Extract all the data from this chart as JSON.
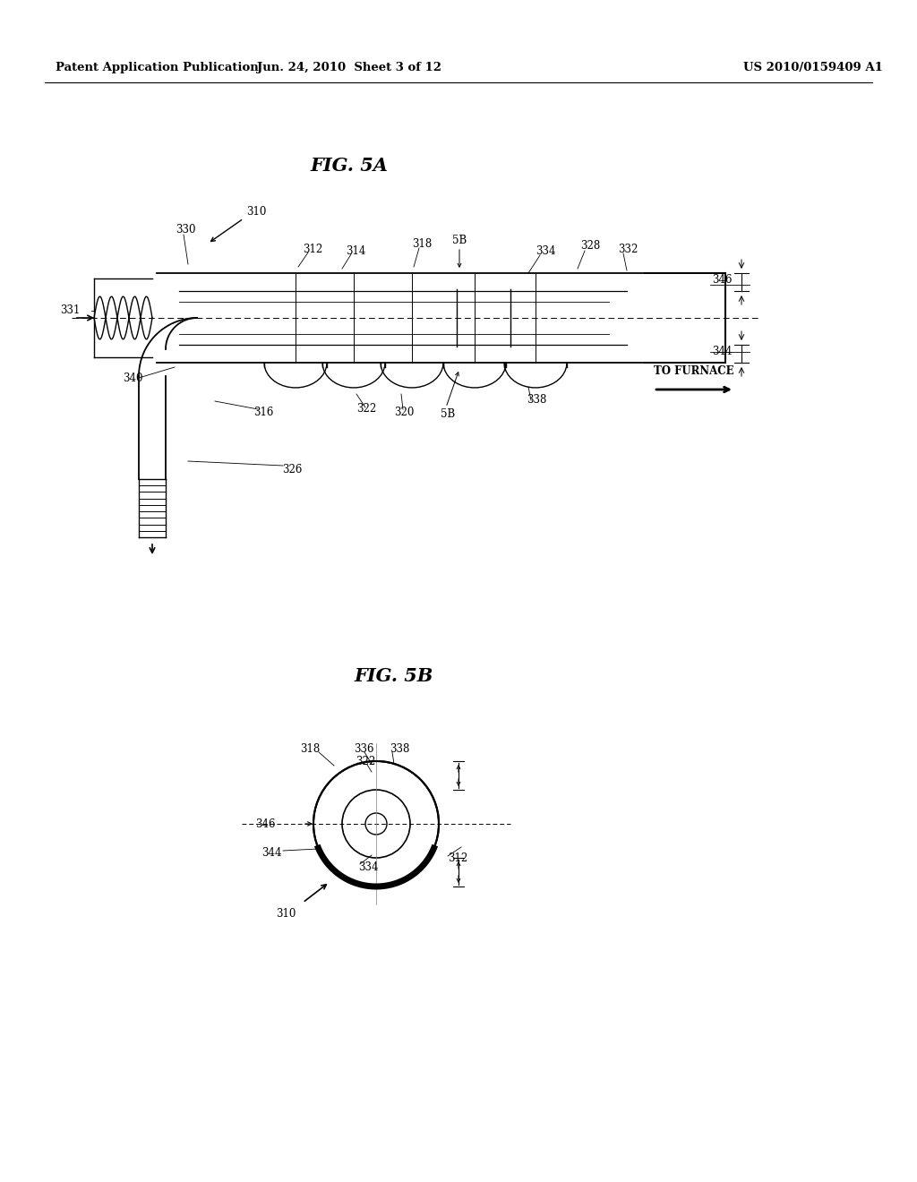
{
  "header_left": "Patent Application Publication",
  "header_mid": "Jun. 24, 2010  Sheet 3 of 12",
  "header_right": "US 2010/0159409 A1",
  "fig5a_title": "FIG. 5A",
  "fig5b_title": "FIG. 5B",
  "bg_color": "#ffffff",
  "line_color": "#000000",
  "lfs": 8.5,
  "title_fontsize": 15,
  "header_fontsize": 9.5
}
